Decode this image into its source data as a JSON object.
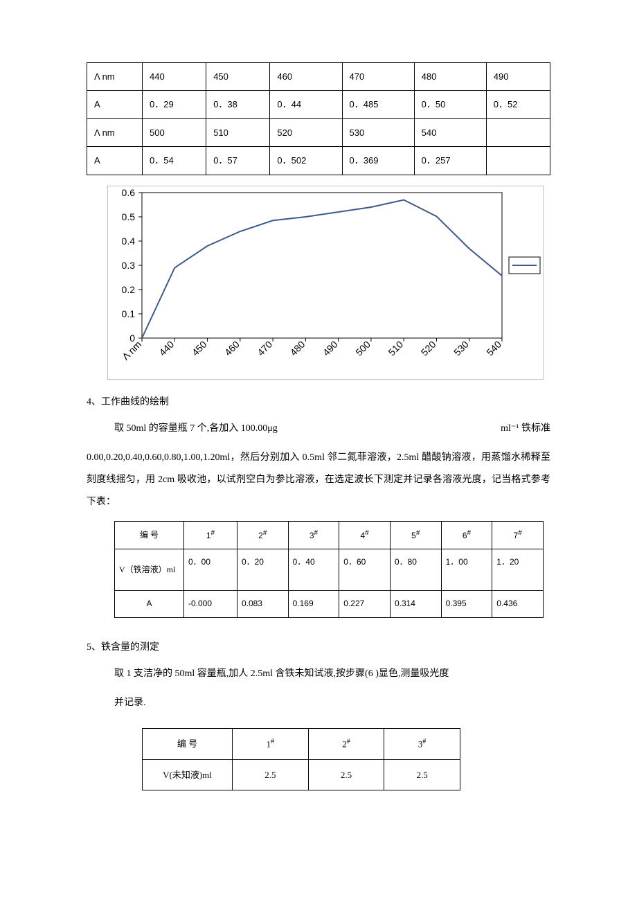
{
  "wavelength_table": {
    "row1_label": "Λ nm",
    "row1_values": [
      "440",
      "450",
      "460",
      "470",
      "480",
      "490"
    ],
    "row2_label": "A",
    "row2_values": [
      "0．29",
      "0．38",
      "0．44",
      "0．485",
      "0．50",
      "0．52"
    ],
    "row3_label": "Λ nm",
    "row3_values": [
      "500",
      "510",
      "520",
      "530",
      "540",
      ""
    ],
    "row4_label": "A",
    "row4_values": [
      "0．54",
      "0．57",
      "0．502",
      "0．369",
      "0．257",
      ""
    ]
  },
  "chart": {
    "type": "line",
    "x_labels": [
      "Λ nm",
      "440",
      "450",
      "460",
      "470",
      "480",
      "490",
      "500",
      "510",
      "520",
      "530",
      "540"
    ],
    "y_labels": [
      "0",
      "0.1",
      "0.2",
      "0.3",
      "0.4",
      "0.5",
      "0.6"
    ],
    "y_min": 0,
    "y_max": 0.6,
    "data": [
      0,
      0.29,
      0.38,
      0.44,
      0.485,
      0.5,
      0.52,
      0.54,
      0.57,
      0.502,
      0.369,
      0.257
    ],
    "background_color": "#ffffff",
    "border_color": "#868686",
    "grid_color": "#000000",
    "line_color": "#3a5a8c",
    "line_width": 2,
    "axis_fontsize": 14,
    "x_label_rotation": -45,
    "legend_marker_color": "#3a5a8c"
  },
  "section4_title": "4、工作曲线的绘制",
  "section4_line1_left": "取 50ml 的容量瓶 7 个,各加入 100.00μg",
  "section4_line1_right": "ml⁻¹ 铁标准",
  "section4_body": "0.00,0.20,0.40,0.60,0.80,1.00,1.20ml，然后分别加入 0.5ml 邻二氮菲溶液，2.5ml 醋酸钠溶液，用蒸馏水稀释至刻度线摇匀，用 2cm 吸收池，以试剂空白为参比溶液，在选定波长下测定并记录各溶液光度，记当格式参考下表：",
  "calibration_table": {
    "header_label": "编         号",
    "headers": [
      "1",
      "2",
      "3",
      "4",
      "5",
      "6",
      "7"
    ],
    "vol_label": "V（铁溶液）ml",
    "vol_values": [
      "0．00",
      "0．20",
      "0．40",
      "0．60",
      "0．80",
      "1．00",
      "1．20"
    ],
    "a_label": "A",
    "a_values": [
      "-0.000",
      "0.083",
      "0.169",
      "0.227",
      "0.314",
      "0.395",
      "0.436"
    ]
  },
  "section5_title": "5、铁含量的测定",
  "section5_body1": "取 1 支洁净的 50ml 容量瓶,加人 2.5ml 含铁未知试液,按步骤(6 )显色,测量吸光度",
  "section5_body2": "并记录.",
  "unknown_table": {
    "header_label": "编      号",
    "headers": [
      "1",
      "2",
      "3"
    ],
    "vol_label": "V(未知液)ml",
    "vol_values": [
      "2.5",
      "2.5",
      "2.5"
    ]
  }
}
